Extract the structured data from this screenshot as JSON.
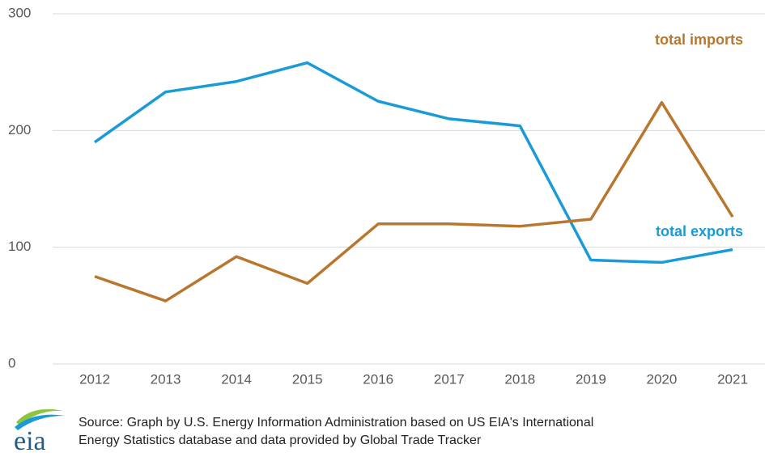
{
  "chart_data": {
    "type": "line",
    "categories": [
      "2012",
      "2013",
      "2014",
      "2015",
      "2016",
      "2017",
      "2018",
      "2019",
      "2020",
      "2021"
    ],
    "series": [
      {
        "name": "total exports",
        "color": "#1a9bd7",
        "values": [
          190,
          233,
          242,
          258,
          225,
          210,
          204,
          89,
          87,
          98
        ]
      },
      {
        "name": "total imports",
        "color": "#b8762f",
        "values": [
          75,
          54,
          92,
          69,
          120,
          120,
          118,
          124,
          224,
          126
        ]
      }
    ],
    "ylim": [
      0,
      300
    ],
    "yticks": [
      0,
      100,
      200,
      300
    ],
    "grid": true,
    "source": [
      "Source: Graph by U.S. Energy Information Administration based on US EIA's International",
      "Energy Statistics database and data provided by Global Trade Tracker"
    ],
    "logo": "eia"
  }
}
